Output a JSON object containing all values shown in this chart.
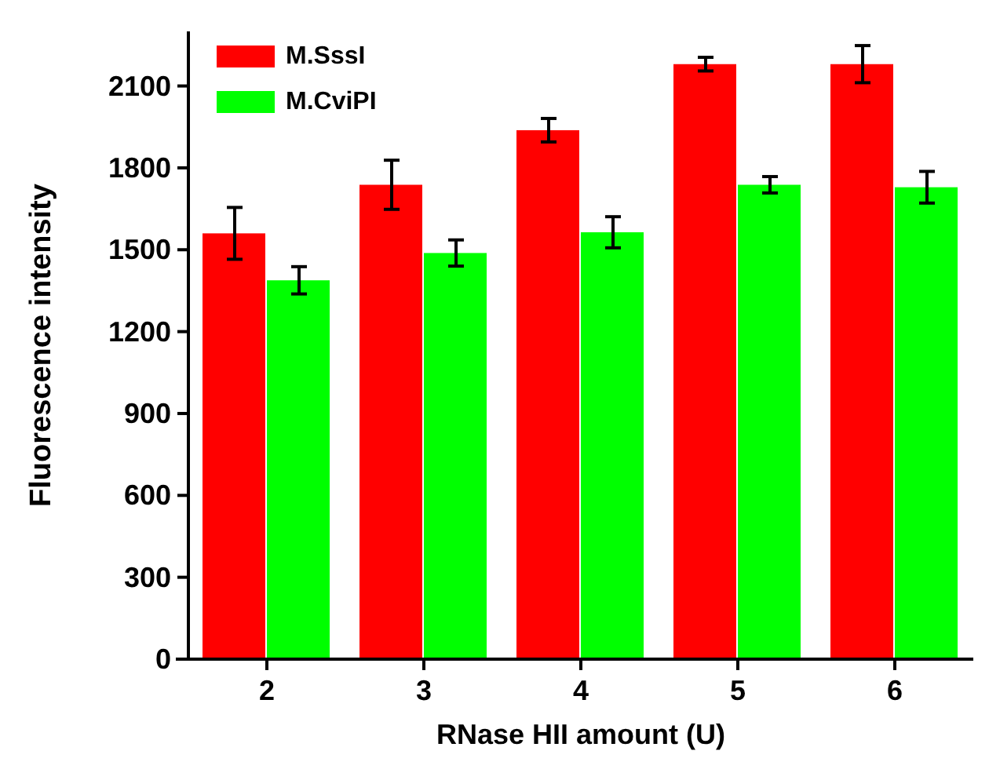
{
  "chart_data": {
    "type": "bar",
    "xlabel": "RNase HII amount (U)",
    "ylabel": "Fluorescence intensity",
    "categories": [
      "2",
      "3",
      "4",
      "5",
      "6"
    ],
    "series": [
      {
        "name": "M.SssI",
        "color": "#ff0000",
        "values": [
          1560,
          1738,
          1938,
          2180,
          2180
        ],
        "errors": [
          95,
          90,
          43,
          25,
          68
        ]
      },
      {
        "name": "M.CviPI",
        "color": "#00ff00",
        "values": [
          1388,
          1488,
          1564,
          1738,
          1729
        ],
        "errors": [
          50,
          48,
          57,
          30,
          58
        ]
      }
    ],
    "ylim": [
      0,
      2300
    ],
    "yticks": [
      0,
      300,
      600,
      900,
      1200,
      1500,
      1800,
      2100
    ],
    "legend": "top left"
  }
}
